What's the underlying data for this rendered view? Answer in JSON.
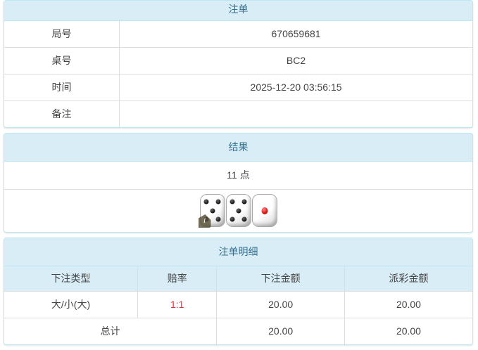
{
  "order_panel": {
    "title": "注单",
    "rows": [
      {
        "label": "局号",
        "value": "670659681"
      },
      {
        "label": "桌号",
        "value": "BC2"
      },
      {
        "label": "时间",
        "value": "2025-12-20 03:56:15"
      },
      {
        "label": "备注",
        "value": ""
      }
    ]
  },
  "result_panel": {
    "title": "结果",
    "points": "11 点",
    "dice": [
      5,
      5,
      1
    ],
    "info_badge": "i"
  },
  "detail_panel": {
    "title": "注单明细",
    "columns": [
      "下注类型",
      "赔率",
      "下注金额",
      "派彩金额"
    ],
    "rows": [
      {
        "bet_type": "大/小(大)",
        "odds": "1:1",
        "bet_amount": "20.00",
        "payout_amount": "20.00"
      }
    ],
    "total": {
      "label": "总计",
      "bet_amount": "20.00",
      "payout_amount": "20.00"
    }
  },
  "colors": {
    "panel_border": "#bce8f1",
    "heading_bg": "#d9edf7",
    "heading_text": "#31708f",
    "cell_border": "#dddddd",
    "body_text": "#444444",
    "odds_red": "#dd3333",
    "pip_black": "#1a1a1a",
    "pip_red": "#cc1111"
  }
}
